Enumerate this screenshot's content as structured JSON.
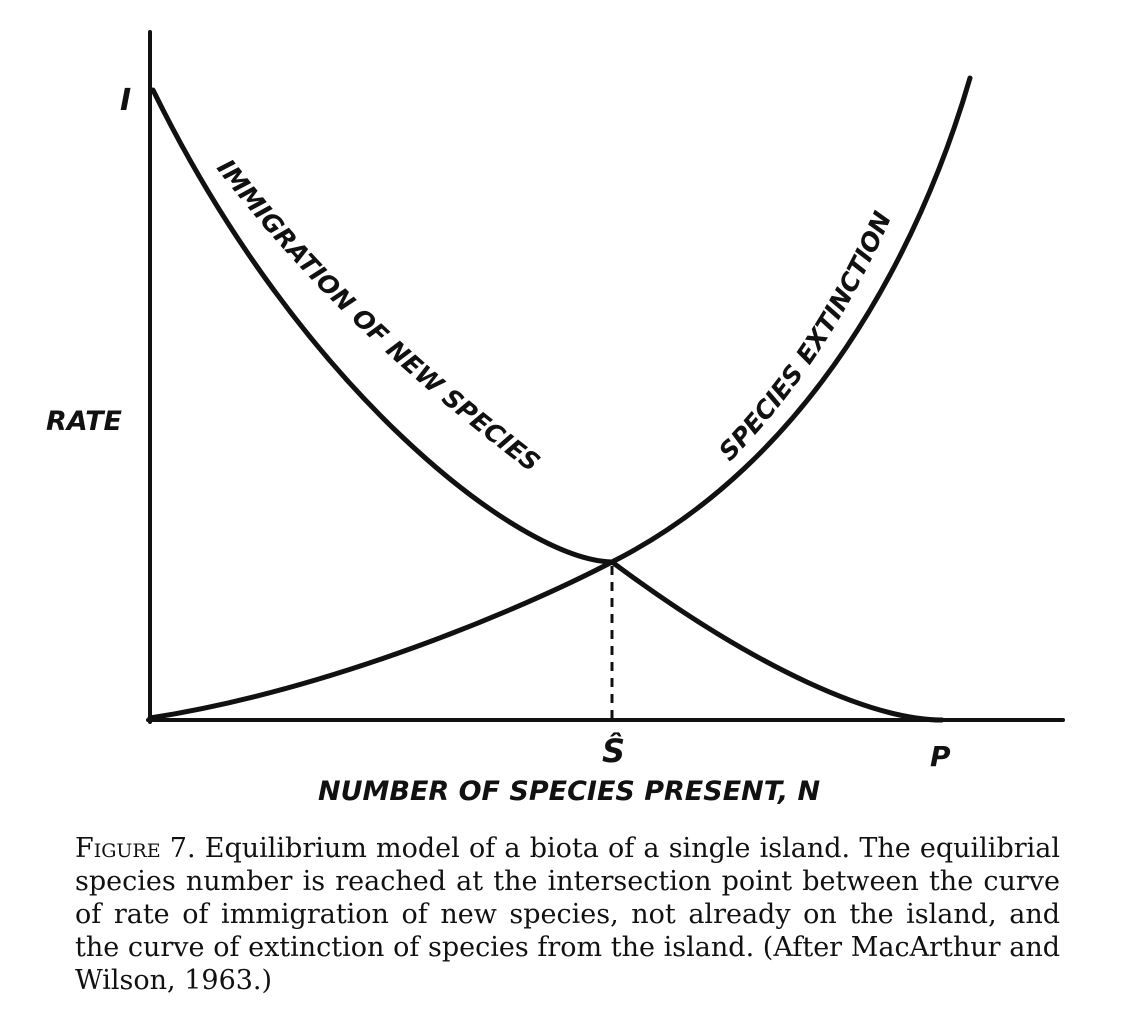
{
  "diagram": {
    "y_axis_label": "RATE",
    "x_axis_label": "NUMBER OF SPECIES PRESENT, N",
    "y_tick_label": "I",
    "equilibrium_label": "Ŝ",
    "pool_label": "P",
    "immigration_curve_label": "IMMIGRATION OF NEW SPECIES",
    "extinction_curve_label": "SPECIES EXTINCTION"
  },
  "caption": {
    "lead": "Figure 7.",
    "text": "Equilibrium model of a biota of a single island. The equilibrial species number is reached at the intersection point between the curve of rate of immigration of new species, not already on the island, and the curve of extinction of species from the island. (After MacArthur and Wilson, 1963.)"
  }
}
